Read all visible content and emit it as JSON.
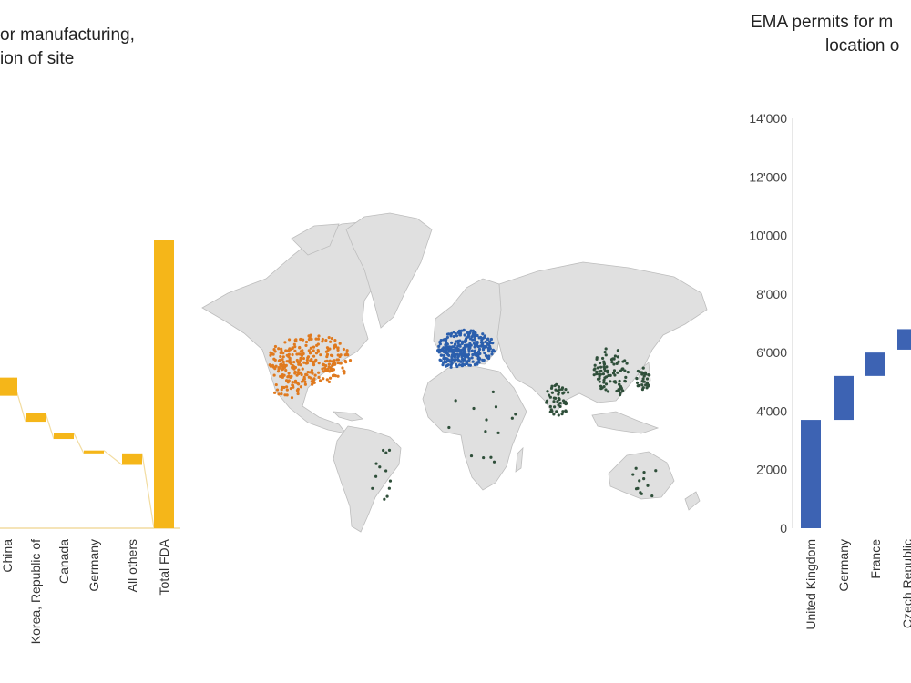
{
  "fda_chart": {
    "title_line1": "or manufacturing,",
    "title_line2": "ion of site"
  },
  "ema_chart": {
    "title_line1": "EMA permits for m",
    "title_line2": "location o"
  },
  "colors": {
    "fda_bar": "#f5b619",
    "ema_bar": "#3d63b3",
    "map_land": "#e0e0e0",
    "us_sites": "#e07a1f",
    "eu_sites": "#2b5fad",
    "asia_sites": "#2f4f3a"
  },
  "chart_data": [
    {
      "type": "bar",
      "subtype": "waterfall",
      "categories": [
        "China",
        "Korea, Republic of",
        "Canada",
        "Germany",
        "All others",
        "Total FDA"
      ],
      "series": [
        {
          "start": [
            null,
            37,
            31,
            26,
            22,
            0
          ],
          "end": [
            null,
            40,
            33,
            27,
            26,
            100
          ],
          "cut_off_value_bottom": [
            46,
            null,
            null,
            null,
            null,
            null
          ]
        }
      ],
      "axis": "not shown"
    },
    {
      "type": "bar",
      "subtype": "waterfall",
      "categories": [
        "United Kingdom",
        "Germany",
        "France",
        "Czech Republic"
      ],
      "series": [
        {
          "start": [
            0,
            3700,
            5200,
            6100
          ],
          "end": [
            3700,
            5200,
            6000,
            6800
          ]
        }
      ],
      "ylim": [
        0,
        14000
      ],
      "yticks": [
        "0",
        "2'000",
        "4'000",
        "6'000",
        "8'000",
        "10'000",
        "12'000",
        "14'000"
      ],
      "grid": false
    }
  ]
}
